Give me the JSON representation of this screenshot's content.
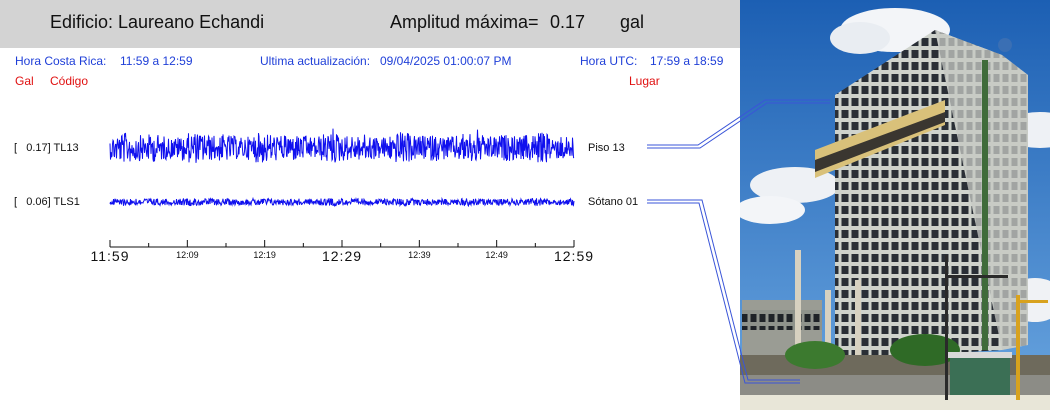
{
  "header": {
    "building_label": "Edificio: Laureano Echandi",
    "amplitude_label": "Amplitud máxima=",
    "amplitude_value": "0.17",
    "amplitude_unit": "gal"
  },
  "info": {
    "local_label": "Hora Costa Rica:",
    "local_range": "11:59 a 12:59",
    "update_label": "Ultima actualización:",
    "update_value": "09/04/2025 01:00:07 PM",
    "utc_label": "Hora UTC:",
    "utc_range": "17:59 a 18:59"
  },
  "columns": {
    "gal": "Gal",
    "code": "Código",
    "place": "Lugar"
  },
  "channels": [
    {
      "amp": "[   0.17] TL13",
      "place": "Piso 13"
    },
    {
      "amp": "[   0.06] TLS1",
      "place": "Sótano 01"
    }
  ],
  "axis": {
    "ticks": [
      "11:59",
      "12:09",
      "12:19",
      "12:29",
      "12:39",
      "12:49",
      "12:59"
    ],
    "major": [
      true,
      false,
      false,
      true,
      false,
      false,
      true
    ]
  },
  "colors": {
    "trace": "#1010ee",
    "header_bg": "#d3d3d3",
    "info_text": "#1f3fd8",
    "column_text": "#e01010"
  }
}
